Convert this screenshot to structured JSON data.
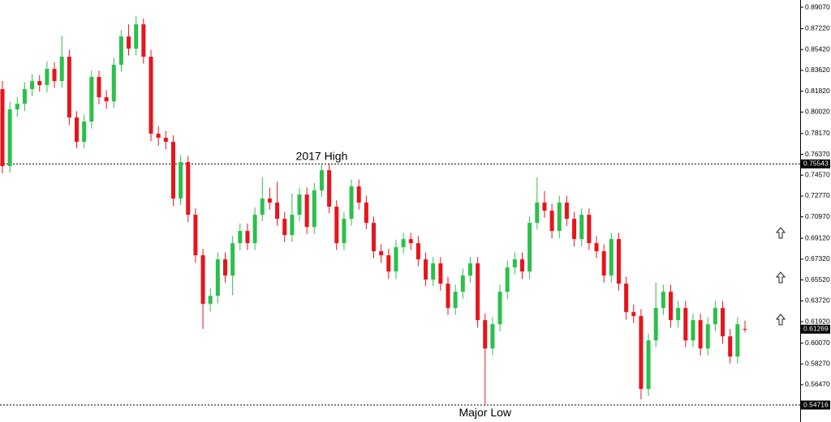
{
  "chart_data": {
    "type": "candlestick",
    "up_color": "#2bc04a",
    "down_color": "#e8141c",
    "open": [
      0.82,
      0.7535,
      0.8025,
      0.8074,
      0.82,
      0.827,
      0.8235,
      0.8375,
      0.827,
      0.848,
      0.7955,
      0.7745,
      0.792,
      0.8305,
      0.813,
      0.8095,
      0.841,
      0.8655,
      0.855,
      0.876,
      0.848,
      0.7815,
      0.778,
      0.7745,
      0.7255,
      0.757,
      0.7115,
      0.6765,
      0.6345,
      0.6415,
      0.673,
      0.659,
      0.687,
      0.6975,
      0.687,
      0.7115,
      0.7255,
      0.722,
      0.708,
      0.694,
      0.7115,
      0.729,
      0.701,
      0.7325,
      0.75,
      0.7185,
      0.687,
      0.708,
      0.736,
      0.722,
      0.7045,
      0.68,
      0.6765,
      0.6625,
      0.6835,
      0.6905,
      0.687,
      0.673,
      0.6555,
      0.6695,
      0.652,
      0.631,
      0.645,
      0.659,
      0.6695,
      0.6205,
      0.596,
      0.617,
      0.645,
      0.666,
      0.673,
      0.6625,
      0.7045,
      0.722,
      0.715,
      0.6975,
      0.722,
      0.708,
      0.6905,
      0.7115,
      0.687,
      0.68,
      0.659,
      0.6905,
      0.652,
      0.6275,
      0.624,
      0.561,
      0.603,
      0.631,
      0.645,
      0.6205,
      0.631,
      0.603,
      0.6205,
      0.596,
      0.617,
      0.631,
      0.6065,
      0.589,
      0.613
    ],
    "high": [
      0.827,
      0.809,
      0.813,
      0.826,
      0.833,
      0.832,
      0.844,
      0.843,
      0.866,
      0.854,
      0.801,
      0.798,
      0.836,
      0.836,
      0.819,
      0.847,
      0.871,
      0.876,
      0.883,
      0.881,
      0.854,
      0.788,
      0.784,
      0.78,
      0.763,
      0.762,
      0.717,
      0.682,
      0.648,
      0.679,
      0.679,
      0.693,
      0.704,
      0.704,
      0.718,
      0.744,
      0.735,
      0.74,
      0.714,
      0.73,
      0.735,
      0.735,
      0.739,
      0.7554,
      0.755,
      0.724,
      0.714,
      0.742,
      0.742,
      0.728,
      0.71,
      0.686,
      0.682,
      0.69,
      0.696,
      0.696,
      0.693,
      0.679,
      0.675,
      0.675,
      0.658,
      0.651,
      0.665,
      0.675,
      0.675,
      0.626,
      0.623,
      0.651,
      0.672,
      0.679,
      0.679,
      0.71,
      0.744,
      0.732,
      0.721,
      0.728,
      0.728,
      0.714,
      0.717,
      0.717,
      0.693,
      0.686,
      0.696,
      0.696,
      0.658,
      0.634,
      0.63,
      0.609,
      0.653,
      0.651,
      0.651,
      0.637,
      0.637,
      0.626,
      0.626,
      0.623,
      0.637,
      0.637,
      0.613,
      0.623,
      0.62
    ],
    "low": [
      0.747,
      0.748,
      0.796,
      0.801,
      0.814,
      0.818,
      0.817,
      0.821,
      0.821,
      0.789,
      0.769,
      0.769,
      0.786,
      0.807,
      0.803,
      0.804,
      0.835,
      0.849,
      0.849,
      0.842,
      0.775,
      0.771,
      0.768,
      0.719,
      0.72,
      0.705,
      0.67,
      0.613,
      0.628,
      0.635,
      0.653,
      0.642,
      0.681,
      0.681,
      0.681,
      0.706,
      0.716,
      0.702,
      0.688,
      0.688,
      0.706,
      0.695,
      0.695,
      0.727,
      0.713,
      0.681,
      0.681,
      0.702,
      0.716,
      0.699,
      0.674,
      0.67,
      0.656,
      0.656,
      0.678,
      0.681,
      0.667,
      0.65,
      0.65,
      0.646,
      0.625,
      0.625,
      0.639,
      0.653,
      0.614,
      0.5472,
      0.59,
      0.611,
      0.639,
      0.66,
      0.656,
      0.656,
      0.699,
      0.709,
      0.691,
      0.691,
      0.702,
      0.684,
      0.684,
      0.681,
      0.674,
      0.653,
      0.653,
      0.646,
      0.621,
      0.618,
      0.552,
      0.555,
      0.597,
      0.625,
      0.614,
      0.614,
      0.597,
      0.597,
      0.59,
      0.59,
      0.611,
      0.6,
      0.583,
      0.583,
      0.61
    ],
    "close": [
      0.7535,
      0.8025,
      0.8074,
      0.82,
      0.827,
      0.8235,
      0.8375,
      0.827,
      0.848,
      0.7955,
      0.7745,
      0.792,
      0.8305,
      0.813,
      0.8095,
      0.841,
      0.8655,
      0.855,
      0.876,
      0.848,
      0.7815,
      0.778,
      0.7745,
      0.7255,
      0.757,
      0.7115,
      0.6765,
      0.6345,
      0.6415,
      0.673,
      0.659,
      0.687,
      0.6975,
      0.687,
      0.7115,
      0.7255,
      0.722,
      0.708,
      0.694,
      0.7115,
      0.729,
      0.701,
      0.7325,
      0.75,
      0.7185,
      0.687,
      0.708,
      0.736,
      0.722,
      0.7045,
      0.68,
      0.6765,
      0.6625,
      0.6835,
      0.6905,
      0.687,
      0.673,
      0.6555,
      0.6695,
      0.652,
      0.631,
      0.645,
      0.659,
      0.6695,
      0.6205,
      0.596,
      0.617,
      0.645,
      0.666,
      0.673,
      0.6625,
      0.7045,
      0.722,
      0.715,
      0.6975,
      0.722,
      0.708,
      0.6905,
      0.7115,
      0.687,
      0.68,
      0.659,
      0.6905,
      0.652,
      0.6275,
      0.624,
      0.561,
      0.603,
      0.631,
      0.645,
      0.6205,
      0.631,
      0.603,
      0.6205,
      0.596,
      0.617,
      0.631,
      0.6065,
      0.589,
      0.617,
      0.6127
    ],
    "ylim": [
      0.5325,
      0.897
    ],
    "yticks": [
      {
        "value": 0.8907,
        "label": "0.89070"
      },
      {
        "value": 0.8722,
        "label": "0.87220"
      },
      {
        "value": 0.8542,
        "label": "0.85420"
      },
      {
        "value": 0.8362,
        "label": "0.83620"
      },
      {
        "value": 0.8182,
        "label": "0.81820"
      },
      {
        "value": 0.8002,
        "label": "0.80020"
      },
      {
        "value": 0.7817,
        "label": "0.78170"
      },
      {
        "value": 0.7637,
        "label": "0.76370"
      },
      {
        "value": 0.7457,
        "label": "0.74570"
      },
      {
        "value": 0.7277,
        "label": "0.72770"
      },
      {
        "value": 0.7097,
        "label": "0.70970"
      },
      {
        "value": 0.6912,
        "label": "0.69120"
      },
      {
        "value": 0.6732,
        "label": "0.67320"
      },
      {
        "value": 0.6552,
        "label": "0.65520"
      },
      {
        "value": 0.6372,
        "label": "0.63720"
      },
      {
        "value": 0.6192,
        "label": "0.61920"
      },
      {
        "value": 0.6007,
        "label": "0.60070"
      },
      {
        "value": 0.5827,
        "label": "0.58270"
      },
      {
        "value": 0.5647,
        "label": "0.56470"
      }
    ],
    "levels": [
      {
        "value": 0.75543,
        "text": "2017 High"
      },
      {
        "value": 0.54716,
        "text": "Major Low"
      }
    ],
    "last": 0.61269
  }
}
